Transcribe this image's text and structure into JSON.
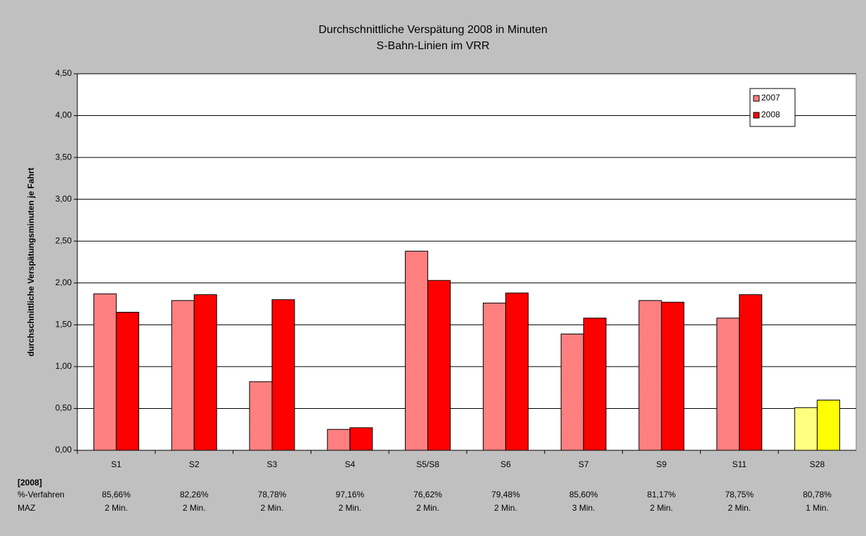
{
  "chart_data": {
    "type": "bar",
    "title": "Durchschnittliche Verspätung 2008 in Minuten",
    "subtitle": "S-Bahn-Linien im VRR",
    "y_label": "durchschnittliche Verspätungsminuten je Fahrt",
    "categories": [
      "S1",
      "S2",
      "S3",
      "S4",
      "S5/S8",
      "S6",
      "S7",
      "S9",
      "S11",
      "S28"
    ],
    "series": [
      {
        "name": "2007",
        "color": "#ff0000",
        "pattern": "dots",
        "colors": [
          "#ff0000",
          "#ff0000",
          "#ff0000",
          "#ff0000",
          "#ff0000",
          "#ff0000",
          "#ff0000",
          "#ff0000",
          "#ff0000",
          "#ffff00"
        ],
        "values": [
          1.87,
          1.79,
          0.82,
          0.25,
          2.38,
          1.76,
          1.39,
          1.79,
          1.58,
          0.51
        ]
      },
      {
        "name": "2008",
        "color": "#ff0000",
        "colors": [
          "#ff0000",
          "#ff0000",
          "#ff0000",
          "#ff0000",
          "#ff0000",
          "#ff0000",
          "#ff0000",
          "#ff0000",
          "#ff0000",
          "#ffff00"
        ],
        "values": [
          1.65,
          1.86,
          1.8,
          0.27,
          2.03,
          1.88,
          1.58,
          1.77,
          1.86,
          0.6
        ]
      }
    ],
    "ylim": [
      0,
      4.5
    ],
    "yticks": [
      {
        "value": 0,
        "label": "0,00"
      },
      {
        "value": 0.5,
        "label": "0,50"
      },
      {
        "value": 1,
        "label": "1,00"
      },
      {
        "value": 1.5,
        "label": "1,50"
      },
      {
        "value": 2,
        "label": "2,00"
      },
      {
        "value": 2.5,
        "label": "2,50"
      },
      {
        "value": 3,
        "label": "3,00"
      },
      {
        "value": 3.5,
        "label": "3,50"
      },
      {
        "value": 4,
        "label": "4,00"
      },
      {
        "value": 4.5,
        "label": "4,50"
      }
    ],
    "grid": true,
    "legend": "upper right",
    "table": {
      "title": "[2008]",
      "rows": [
        {
          "label": "%-Verfahren",
          "values": [
            "85,66%",
            "82,26%",
            "78,78%",
            "97,16%",
            "76,62%",
            "79,48%",
            "85,60%",
            "81,17%",
            "78,75%",
            "80,78%"
          ]
        },
        {
          "label": "MAZ",
          "values": [
            "2 Min.",
            "2 Min.",
            "2 Min.",
            "2 Min.",
            "2 Min.",
            "2 Min.",
            "3 Min.",
            "2 Min.",
            "2 Min.",
            "1 Min."
          ]
        }
      ]
    }
  }
}
